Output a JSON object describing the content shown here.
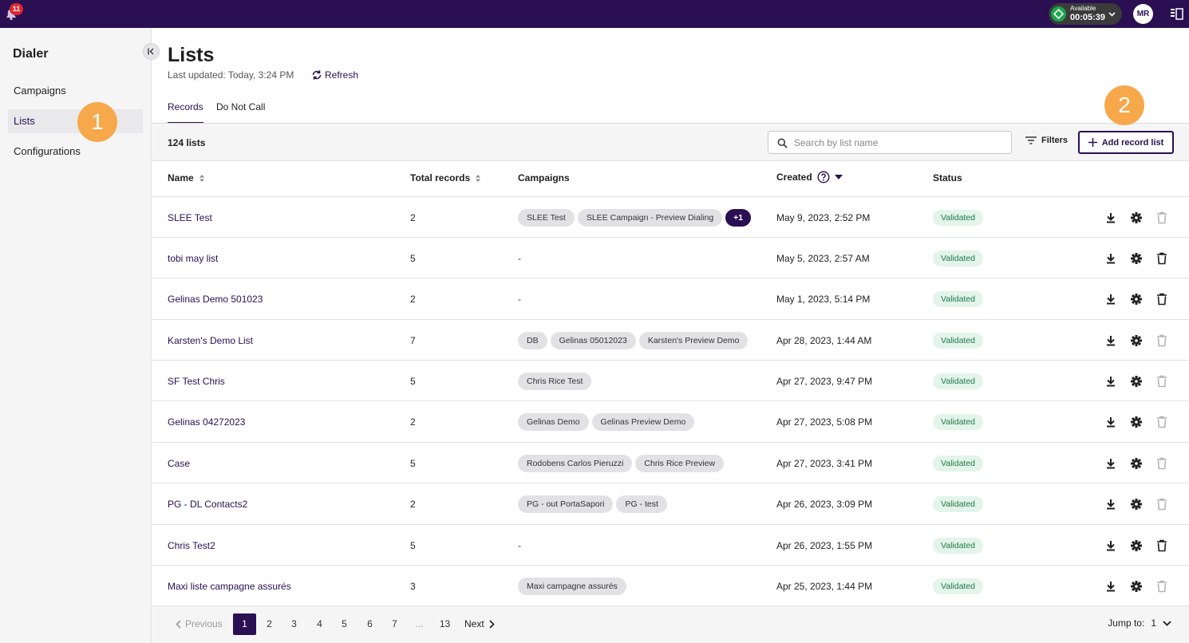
{
  "topbar": {
    "notifications_count": "11",
    "status_label": "Available",
    "status_time": "00:05:39",
    "user_initials": "MR"
  },
  "sidebar": {
    "title": "Dialer",
    "items": [
      {
        "label": "Campaigns",
        "active": false
      },
      {
        "label": "Lists",
        "active": true
      },
      {
        "label": "Configurations",
        "active": false
      }
    ]
  },
  "callouts": {
    "one": "1",
    "two": "2"
  },
  "header": {
    "title": "Lists",
    "last_updated": "Last updated: Today, 3:24 PM",
    "refresh_label": "Refresh"
  },
  "tabs": [
    {
      "label": "Records",
      "active": true
    },
    {
      "label": "Do Not Call",
      "active": false
    }
  ],
  "toolbar": {
    "count_label": "124 lists",
    "search_placeholder": "Search by list name",
    "filters_label": "Filters",
    "add_label": "Add record list"
  },
  "table": {
    "columns": {
      "name": "Name",
      "total": "Total records",
      "campaigns": "Campaigns",
      "created": "Created",
      "status": "Status"
    },
    "rows": [
      {
        "name": "SLEE Test",
        "total": "2",
        "campaigns": [
          "SLEE Test",
          "SLEE Campaign - Preview Dialing"
        ],
        "more": "+1",
        "created": "May 9, 2023, 2:52 PM",
        "status": "Validated",
        "delete_enabled": false
      },
      {
        "name": "tobi may list",
        "total": "5",
        "campaigns": [],
        "more": "",
        "created": "May 5, 2023, 2:57 AM",
        "status": "Validated",
        "delete_enabled": true
      },
      {
        "name": "Gelinas Demo 501023",
        "total": "2",
        "campaigns": [],
        "more": "",
        "created": "May 1, 2023, 5:14 PM",
        "status": "Validated",
        "delete_enabled": true
      },
      {
        "name": "Karsten's Demo List",
        "total": "7",
        "campaigns": [
          "DB",
          "Gelinas 05012023",
          "Karsten's Preview Demo"
        ],
        "more": "",
        "created": "Apr 28, 2023, 1:44 AM",
        "status": "Validated",
        "delete_enabled": false
      },
      {
        "name": "SF Test Chris",
        "total": "5",
        "campaigns": [
          "Chris Rice Test"
        ],
        "more": "",
        "created": "Apr 27, 2023, 9:47 PM",
        "status": "Validated",
        "delete_enabled": false
      },
      {
        "name": "Gelinas 04272023",
        "total": "2",
        "campaigns": [
          "Gelinas Demo",
          "Gelinas Preview Demo"
        ],
        "more": "",
        "created": "Apr 27, 2023, 5:08 PM",
        "status": "Validated",
        "delete_enabled": false
      },
      {
        "name": "Case",
        "total": "5",
        "campaigns": [
          "Rodobens Carlos Pieruzzi",
          "Chris Rice Preview"
        ],
        "more": "",
        "created": "Apr 27, 2023, 3:41 PM",
        "status": "Validated",
        "delete_enabled": false
      },
      {
        "name": "PG - DL Contacts2",
        "total": "2",
        "campaigns": [
          "PG - out PortaSapori",
          "PG - test"
        ],
        "more": "",
        "created": "Apr 26, 2023, 3:09 PM",
        "status": "Validated",
        "delete_enabled": false
      },
      {
        "name": "Chris Test2",
        "total": "5",
        "campaigns": [],
        "more": "",
        "created": "Apr 26, 2023, 1:55 PM",
        "status": "Validated",
        "delete_enabled": true
      },
      {
        "name": "Maxi liste campagne assurés",
        "total": "3",
        "campaigns": [
          "Maxi campagne assurés"
        ],
        "more": "",
        "created": "Apr 25, 2023, 1:44 PM",
        "status": "Validated",
        "delete_enabled": false
      }
    ],
    "empty_campaign": "-"
  },
  "pagination": {
    "previous_label": "Previous",
    "next_label": "Next",
    "pages": [
      "1",
      "2",
      "3",
      "4",
      "5",
      "6",
      "7",
      "...",
      "13"
    ],
    "current_page": "1",
    "jump_label": "Jump to:",
    "jump_value": "1"
  },
  "colors": {
    "brand": "#2a0f52",
    "callout": "#f7a84a",
    "validated_bg": "#e3f4ea",
    "validated_text": "#1f7a44",
    "available": "#1aa64b"
  }
}
